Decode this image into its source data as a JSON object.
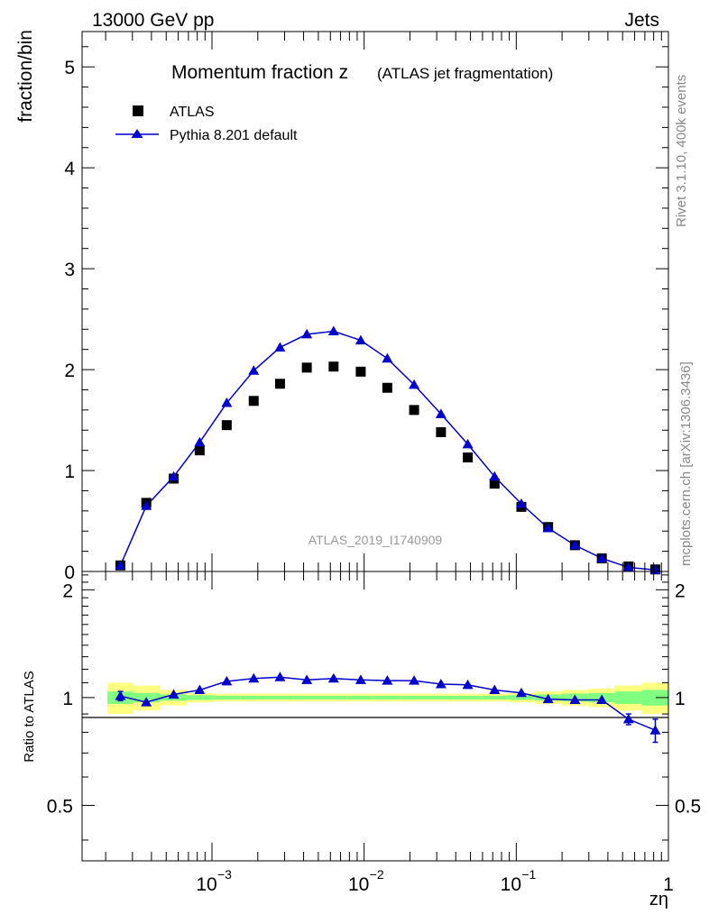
{
  "header": {
    "energy_label": "13000 GeV pp",
    "category_label": "Jets"
  },
  "side_labels": {
    "rivet": "Rivet 3.1.10,  400k events",
    "mcplots": "mcplots.cern.ch [arXiv:1306.3436]"
  },
  "chart_data": [
    {
      "type": "scatter",
      "title": "Momentum fraction z",
      "title_suffix": "(ATLAS jet fragmentation)",
      "watermark": "ATLAS_2019_I1740909",
      "ylabel": "fraction/bin",
      "ylim": [
        0,
        5.35
      ],
      "x_scale": "log",
      "xlim": [
        0.00014,
        1
      ],
      "y_ticks": [
        "0",
        "1",
        "2",
        "3",
        "4",
        "5"
      ],
      "legend_position": "top-left",
      "x": [
        0.00025,
        0.00037,
        0.00056,
        0.00083,
        0.00125,
        0.00188,
        0.0028,
        0.0042,
        0.0063,
        0.0095,
        0.0142,
        0.0213,
        0.032,
        0.048,
        0.072,
        0.108,
        0.162,
        0.243,
        0.365,
        0.547,
        0.82
      ],
      "series": [
        {
          "name": "ATLAS",
          "marker": "square",
          "color": "#000000",
          "values": [
            0.06,
            0.68,
            0.92,
            1.2,
            1.45,
            1.69,
            1.86,
            2.02,
            2.03,
            1.98,
            1.82,
            1.6,
            1.38,
            1.13,
            0.87,
            0.64,
            0.44,
            0.26,
            0.13,
            0.05,
            0.02
          ]
        },
        {
          "name": "Pythia 8.201 default",
          "marker": "triangle",
          "color": "#0000cc",
          "values": [
            0.06,
            0.65,
            0.94,
            1.28,
            1.67,
            1.99,
            2.22,
            2.35,
            2.38,
            2.29,
            2.11,
            1.85,
            1.56,
            1.26,
            0.94,
            0.67,
            0.43,
            0.26,
            0.13,
            0.04,
            0.015
          ]
        }
      ]
    },
    {
      "type": "line",
      "ylabel": "Ratio to ATLAS",
      "xlabel": "zη",
      "x_scale": "log",
      "xlim": [
        0.00014,
        1
      ],
      "ylim": [
        0.35,
        2.25
      ],
      "y_ticks": [
        "0.5",
        "1",
        "2"
      ],
      "x_ticks": [
        "10^-3",
        "10^-2",
        "10^-1",
        "1"
      ],
      "band_colors": {
        "inner": "#80ff80",
        "outer": "#ffff80"
      },
      "bands": {
        "inner": [
          0.04,
          0.03,
          0.02,
          0.015,
          0.012,
          0.012,
          0.012,
          0.012,
          0.012,
          0.012,
          0.012,
          0.012,
          0.012,
          0.012,
          0.012,
          0.015,
          0.02,
          0.025,
          0.03,
          0.04,
          0.05
        ],
        "outer": [
          0.1,
          0.08,
          0.05,
          0.03,
          0.025,
          0.025,
          0.025,
          0.025,
          0.025,
          0.025,
          0.025,
          0.025,
          0.025,
          0.025,
          0.025,
          0.03,
          0.04,
          0.05,
          0.06,
          0.08,
          0.1
        ]
      },
      "x": [
        0.00025,
        0.00037,
        0.00056,
        0.00083,
        0.00125,
        0.00188,
        0.0028,
        0.0042,
        0.0063,
        0.0095,
        0.0142,
        0.0213,
        0.032,
        0.048,
        0.072,
        0.108,
        0.162,
        0.243,
        0.365,
        0.547,
        0.82
      ],
      "series": [
        {
          "name": "Pythia 8.201 default",
          "color": "#0000cc",
          "values": [
            1.01,
            0.97,
            1.02,
            1.05,
            1.11,
            1.13,
            1.14,
            1.12,
            1.13,
            1.12,
            1.115,
            1.115,
            1.09,
            1.085,
            1.05,
            1.03,
            0.99,
            0.985,
            0.985,
            0.87,
            0.81
          ],
          "errors": [
            0.03,
            0,
            0,
            0,
            0,
            0,
            0,
            0,
            0,
            0,
            0,
            0,
            0,
            0,
            0,
            0,
            0,
            0,
            0,
            0.03,
            0.06
          ]
        }
      ]
    }
  ]
}
